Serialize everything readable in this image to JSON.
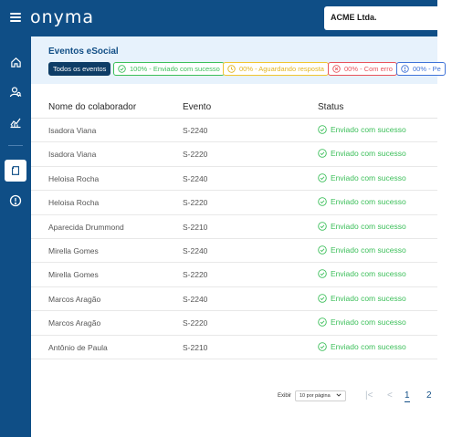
{
  "brand": {
    "logo_text": "onyma",
    "company": "ACME Ltda."
  },
  "page": {
    "title": "Eventos eSocial"
  },
  "filters": [
    {
      "label": "Todos os eventos",
      "color": "#0e3d66"
    },
    {
      "label": "100% - Enviado com sucesso",
      "color": "#3cbf5a",
      "icon": "check-circle-icon"
    },
    {
      "label": "00% - Aguardando resposta",
      "color": "#f0c530",
      "icon": "clock-icon"
    },
    {
      "label": "00% - Com erro",
      "color": "#e8535c",
      "icon": "x-circle-icon"
    },
    {
      "label": "00% - Pe",
      "color": "#3f73d8",
      "icon": "info-circle-icon"
    }
  ],
  "table": {
    "columns": [
      "Nome do colaborador",
      "Evento",
      "Status"
    ],
    "rows": [
      {
        "name": "Isadora Viana",
        "event": "S-2240",
        "status": "Enviado com sucesso"
      },
      {
        "name": "Isadora Viana",
        "event": "S-2220",
        "status": "Enviado com sucesso"
      },
      {
        "name": "Heloisa Rocha",
        "event": "S-2240",
        "status": "Enviado com sucesso"
      },
      {
        "name": "Heloisa Rocha",
        "event": "S-2220",
        "status": "Enviado com sucesso"
      },
      {
        "name": "Aparecida Drummond",
        "event": "S-2210",
        "status": "Enviado com sucesso"
      },
      {
        "name": "Mirella Gomes",
        "event": "S-2240",
        "status": "Enviado com sucesso"
      },
      {
        "name": "Mirella Gomes",
        "event": "S-2220",
        "status": "Enviado com sucesso"
      },
      {
        "name": "Marcos Aragão",
        "event": "S-2240",
        "status": "Enviado com sucesso"
      },
      {
        "name": "Marcos Aragão",
        "event": "S-2220",
        "status": "Enviado com sucesso"
      },
      {
        "name": "Antônio de Paula",
        "event": "S-2210",
        "status": "Enviado com sucesso"
      }
    ]
  },
  "pagination": {
    "show_label": "Exibir",
    "per_page": "10 por página",
    "first": "|<",
    "prev": "<",
    "pages": [
      "1",
      "2"
    ]
  },
  "sidebar": {
    "icons": [
      "home-icon",
      "users-search-icon",
      "chart-icon",
      "document-icon",
      "alert-icon"
    ]
  },
  "colors": {
    "primary": "#0f4e86",
    "success": "#3cbf5a",
    "warning": "#f0c530",
    "error": "#e8535c",
    "info": "#3f73d8"
  }
}
